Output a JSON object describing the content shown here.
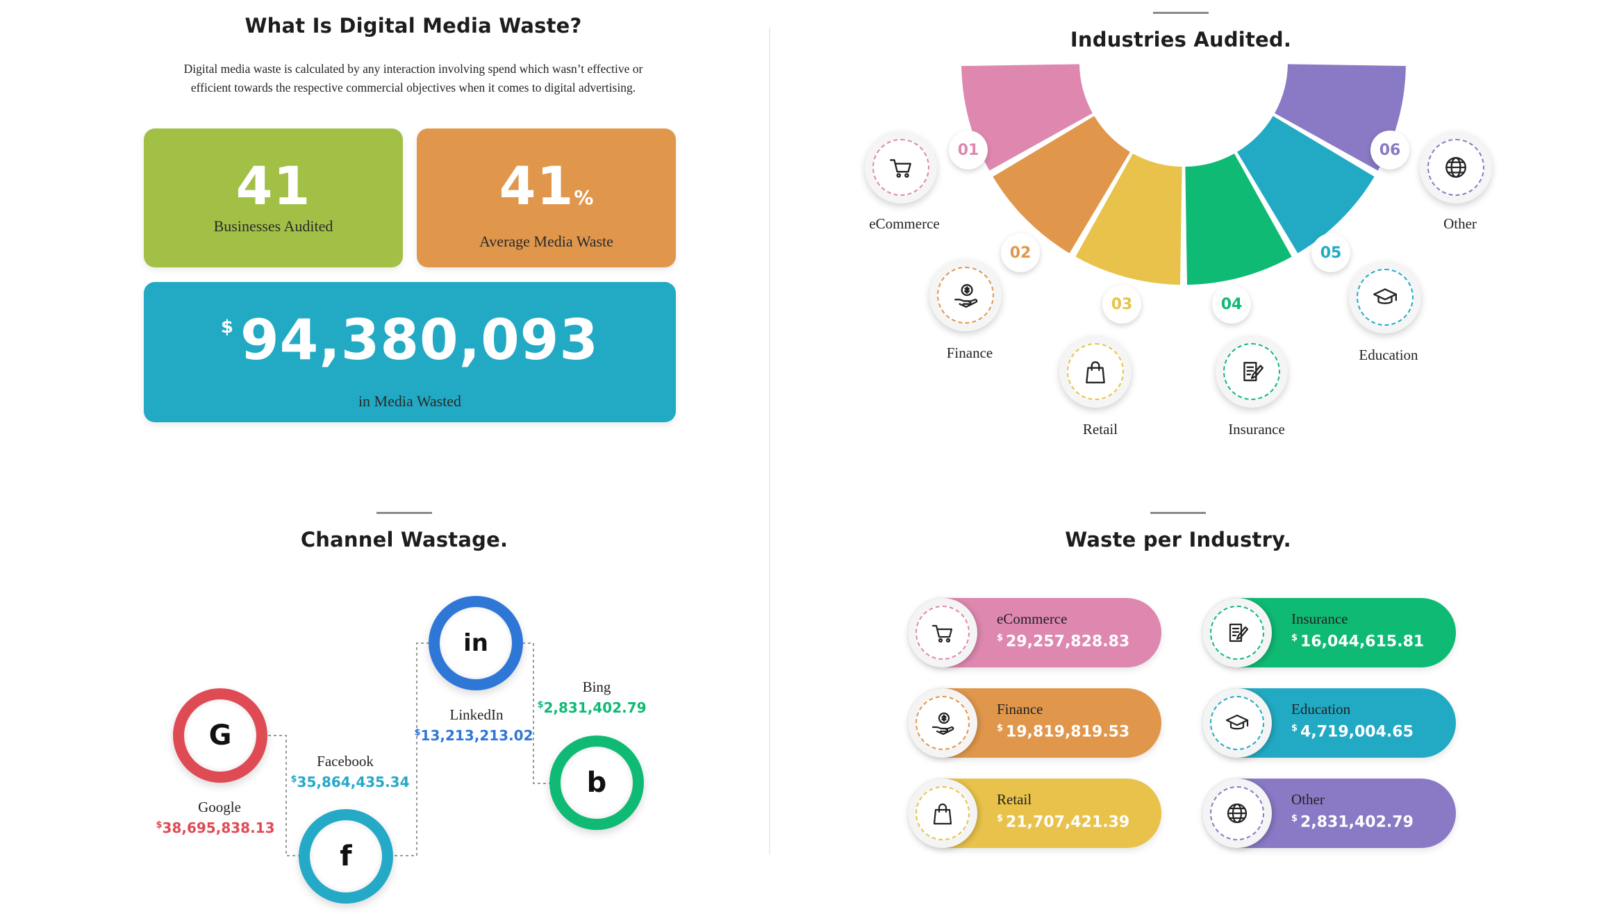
{
  "intro": {
    "title": "What Is Digital Media Waste?",
    "description_line1": "Digital media waste is calculated by any interaction involving spend which wasn’t effective or",
    "description_line2": "efficient towards the respective commercial objectives when it comes to digital advertising."
  },
  "stats": {
    "businesses": {
      "value": "41",
      "label": "Businesses Audited",
      "color": "#a2c046"
    },
    "waste": {
      "value": "41",
      "unit": "%",
      "label": "Average Media Waste",
      "color": "#e0974c"
    },
    "total": {
      "currency": "$",
      "value": "94,380,093",
      "label": "in Media Wasted",
      "color": "#22aac4"
    }
  },
  "industries": {
    "title": "Industries Audited.",
    "items": [
      {
        "number": "01",
        "label": "eCommerce",
        "icon": "cart-icon",
        "color": "#de88b0"
      },
      {
        "number": "02",
        "label": "Finance",
        "icon": "money-hand-icon",
        "color": "#e0974c"
      },
      {
        "number": "03",
        "label": "Retail",
        "icon": "shopping-bag-icon",
        "color": "#e8c24a"
      },
      {
        "number": "04",
        "label": "Insurance",
        "icon": "contract-icon",
        "color": "#0fba74"
      },
      {
        "number": "05",
        "label": "Education",
        "icon": "graduation-cap-icon",
        "color": "#22aac4"
      },
      {
        "number": "06",
        "label": "Other",
        "icon": "globe-icon",
        "color": "#8a79c5"
      }
    ]
  },
  "channels": {
    "title": "Channel Wastage.",
    "items": [
      {
        "name": "Google",
        "glyph": "G",
        "currency": "$",
        "value": "38,695,838.13",
        "color": "#de4b55"
      },
      {
        "name": "Facebook",
        "glyph": "f",
        "currency": "$",
        "value": "35,864,435.34",
        "color": "#24a9c7"
      },
      {
        "name": "LinkedIn",
        "glyph": "in",
        "currency": "$",
        "value": "13,213,213.02",
        "color": "#2f77d6"
      },
      {
        "name": "Bing",
        "glyph": "b",
        "currency": "$",
        "value": "2,831,402.79",
        "color": "#0fba74"
      }
    ]
  },
  "waste_per_industry": {
    "title": "Waste per Industry.",
    "items": [
      {
        "name": "eCommerce",
        "currency": "$",
        "value": "29,257,828.83",
        "icon": "cart-icon",
        "color": "#de88b0"
      },
      {
        "name": "Finance",
        "currency": "$",
        "value": "19,819,819.53",
        "icon": "money-hand-icon",
        "color": "#e0974c"
      },
      {
        "name": "Retail",
        "currency": "$",
        "value": "21,707,421.39",
        "icon": "shopping-bag-icon",
        "color": "#e8c24a"
      },
      {
        "name": "Insurance",
        "currency": "$",
        "value": "16,044,615.81",
        "icon": "contract-icon",
        "color": "#0fba74"
      },
      {
        "name": "Education",
        "currency": "$",
        "value": "4,719,004.65",
        "icon": "graduation-cap-icon",
        "color": "#22aac4"
      },
      {
        "name": "Other",
        "currency": "$",
        "value": "2,831,402.79",
        "icon": "globe-icon",
        "color": "#8a79c5"
      }
    ]
  }
}
